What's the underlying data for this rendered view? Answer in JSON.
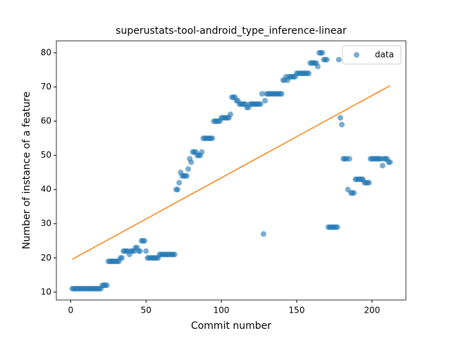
{
  "chart_data": {
    "type": "scatter",
    "title": "superustats-tool-android_type_inference-linear",
    "xlabel": "Commit number",
    "ylabel": "Number of instance of a feature",
    "xlim": [
      -9.5,
      222.5
    ],
    "ylim": [
      7.7,
      83.5
    ],
    "xticks": [
      0,
      50,
      100,
      150,
      200
    ],
    "yticks": [
      10,
      20,
      30,
      40,
      50,
      60,
      70,
      80
    ],
    "legend": "upper right",
    "series": [
      {
        "name": "data",
        "color": "#1f77b4",
        "kind": "scatter",
        "x": [
          1,
          2,
          3,
          4,
          5,
          6,
          7,
          8,
          9,
          10,
          11,
          12,
          13,
          14,
          15,
          16,
          17,
          18,
          19,
          20,
          21,
          22,
          23,
          24,
          25,
          26,
          27,
          28,
          29,
          30,
          31,
          32,
          33,
          34,
          35,
          36,
          37,
          38,
          39,
          40,
          41,
          42,
          43,
          44,
          45,
          46,
          47,
          48,
          49,
          50,
          51,
          52,
          53,
          54,
          55,
          56,
          57,
          58,
          59,
          60,
          61,
          62,
          63,
          64,
          65,
          66,
          67,
          68,
          69,
          70,
          71,
          72,
          73,
          74,
          75,
          76,
          77,
          78,
          79,
          80,
          81,
          82,
          83,
          84,
          85,
          86,
          87,
          88,
          89,
          90,
          91,
          92,
          93,
          94,
          95,
          96,
          97,
          98,
          99,
          100,
          101,
          102,
          103,
          104,
          105,
          106,
          107,
          108,
          109,
          110,
          111,
          112,
          113,
          114,
          115,
          116,
          117,
          118,
          119,
          120,
          121,
          122,
          123,
          124,
          125,
          126,
          127,
          128,
          129,
          130,
          131,
          132,
          133,
          134,
          135,
          136,
          137,
          138,
          139,
          140,
          141,
          142,
          143,
          144,
          145,
          146,
          147,
          148,
          149,
          150,
          151,
          152,
          153,
          154,
          155,
          156,
          157,
          158,
          159,
          160,
          161,
          162,
          163,
          164,
          165,
          166,
          167,
          168,
          169,
          170,
          171,
          172,
          173,
          174,
          175,
          176,
          177,
          178,
          179,
          180,
          181,
          182,
          183,
          184,
          185,
          186,
          187,
          188,
          189,
          190,
          191,
          192,
          193,
          194,
          195,
          196,
          197,
          198,
          199,
          200,
          201,
          202,
          203,
          204,
          205,
          206,
          207,
          208,
          209,
          210,
          211,
          212
        ],
        "values": [
          11,
          11,
          11,
          11,
          11,
          11,
          11,
          11,
          11,
          11,
          11,
          11,
          11,
          11,
          11,
          11,
          11,
          11,
          11,
          11,
          12,
          12,
          12,
          12,
          19,
          19,
          19,
          19,
          19,
          19,
          19,
          19,
          20,
          20,
          22,
          22,
          22,
          22,
          21,
          22,
          22,
          22,
          23,
          23,
          22,
          22,
          25,
          25,
          25,
          22,
          20,
          20,
          20,
          20,
          20,
          20,
          20,
          20,
          21,
          21,
          21,
          21,
          21,
          21,
          21,
          21,
          21,
          21,
          21,
          40,
          40,
          42,
          45,
          44,
          44,
          44,
          44,
          46,
          49,
          48,
          51,
          51,
          51,
          50,
          50,
          50,
          51,
          55,
          55,
          55,
          55,
          55,
          55,
          55,
          60,
          60,
          60,
          60,
          60,
          61,
          61,
          61,
          61,
          61,
          61,
          62,
          67,
          67,
          67,
          66,
          66,
          65,
          65,
          65,
          65,
          65,
          64,
          64,
          65,
          65,
          65,
          65,
          65,
          65,
          65,
          65,
          68,
          27,
          66,
          68,
          68,
          68,
          68,
          68,
          68,
          68,
          68,
          68,
          68,
          68,
          72,
          72,
          73,
          72,
          73,
          73,
          73,
          73,
          73,
          74,
          74,
          74,
          74,
          74,
          74,
          74,
          74,
          74,
          77,
          77,
          77,
          77,
          77,
          76,
          80,
          80,
          80,
          78,
          78,
          78,
          29,
          29,
          29,
          29,
          29,
          29,
          29,
          78,
          61,
          59,
          49,
          49,
          49,
          40,
          49,
          39,
          39,
          39,
          43,
          43,
          43,
          43,
          43,
          43,
          42,
          42,
          42,
          42,
          49,
          49,
          49,
          49,
          49,
          49,
          49,
          49,
          47,
          49,
          49,
          49,
          48,
          48
        ]
      },
      {
        "color": "#ff7f0e",
        "kind": "line",
        "x": [
          1,
          212
        ],
        "values": [
          19.6,
          70.4
        ]
      }
    ]
  }
}
